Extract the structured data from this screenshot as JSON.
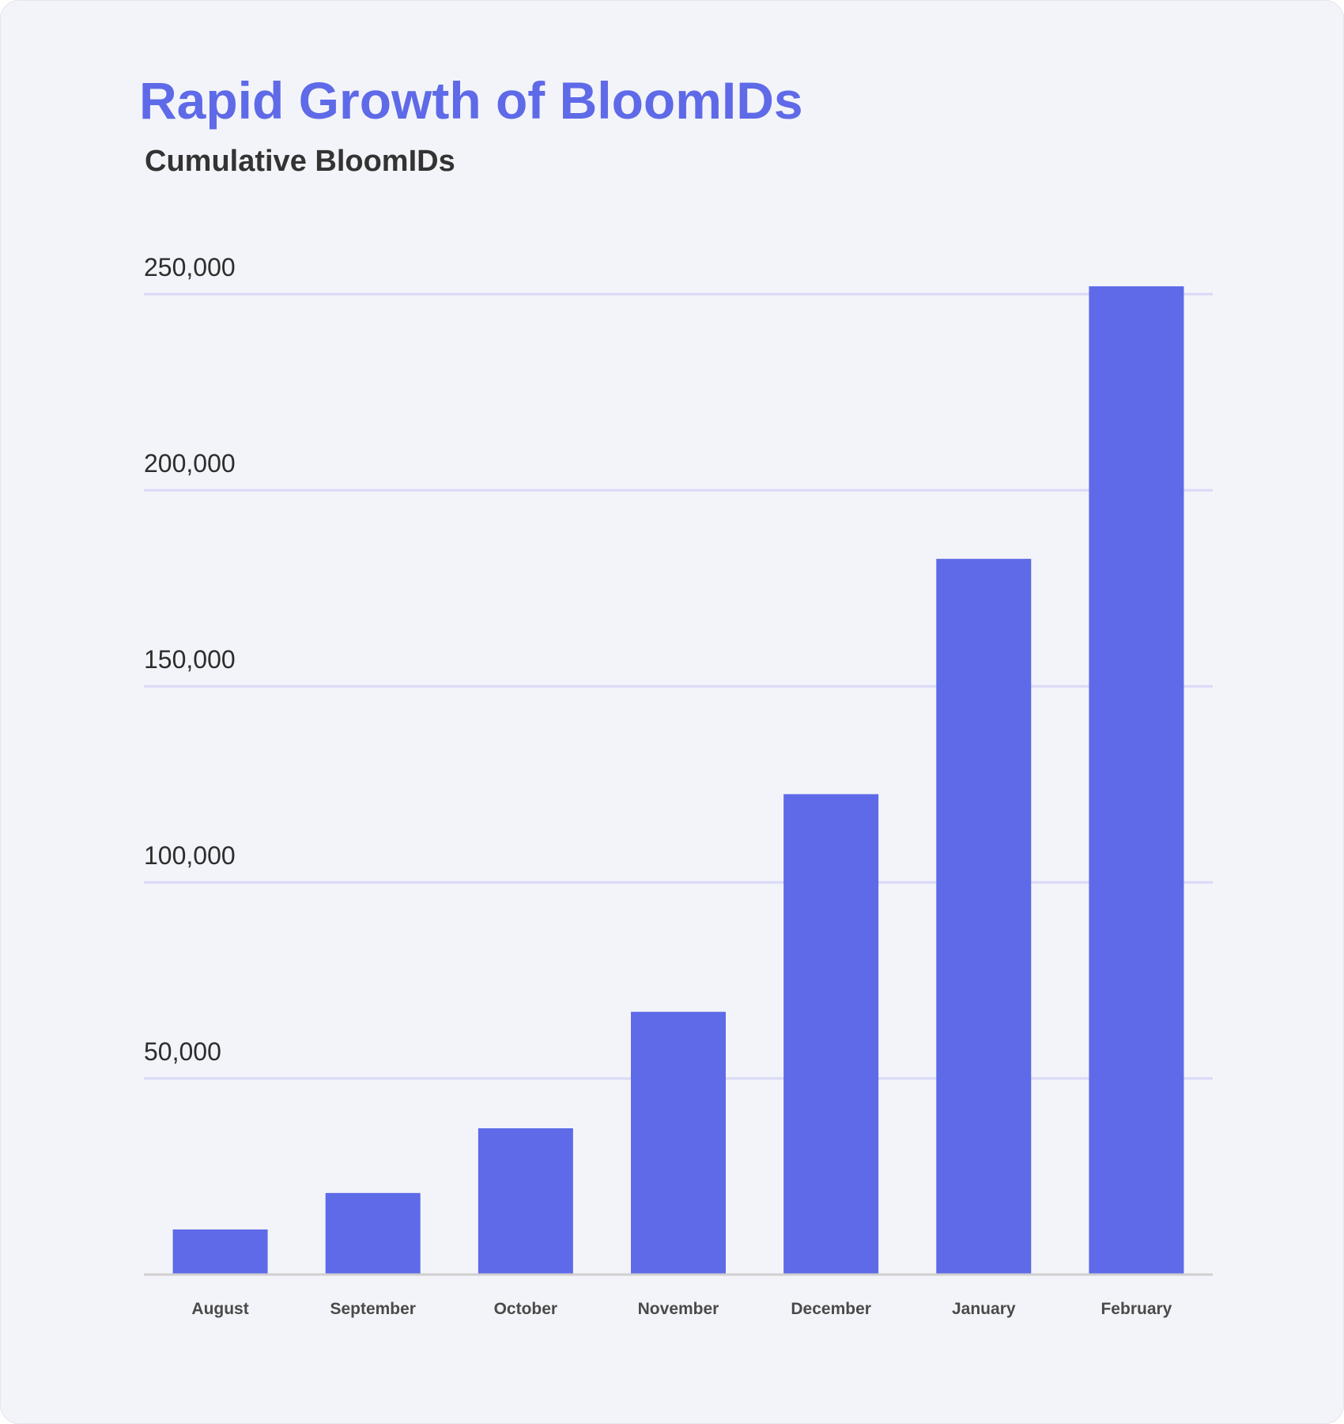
{
  "chart_data": {
    "type": "bar",
    "title": "Rapid Growth of BloomIDs",
    "subtitle": "Cumulative BloomIDs",
    "categories": [
      "August",
      "September",
      "October",
      "November",
      "December",
      "January",
      "February"
    ],
    "values": [
      11500,
      20800,
      37300,
      67000,
      122500,
      182500,
      252000
    ],
    "yticks": [
      50000,
      100000,
      150000,
      200000,
      250000
    ],
    "ytick_labels": [
      "50,000",
      "100,000",
      "150,000",
      "200,000",
      "250,000"
    ],
    "ylim": [
      0,
      250000
    ],
    "grid": true,
    "bar_color": "#5e6ae7",
    "grid_color": "#d8d9f7",
    "axis_color": "#d0d0d0"
  }
}
